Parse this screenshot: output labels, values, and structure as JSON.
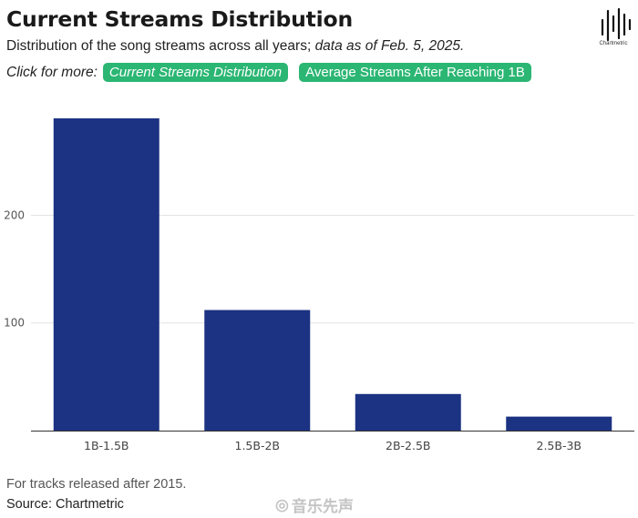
{
  "header": {
    "title": "Current Streams Distribution",
    "subtitle_plain": "Distribution of the song streams across all years; ",
    "subtitle_italic": "data as of Feb. 5, 2025.",
    "click_label": "Click for more:",
    "links": [
      {
        "label": "Current Streams Distribution"
      },
      {
        "label": "Average Streams After Reaching 1B"
      }
    ]
  },
  "logo": {
    "text": "Chartmetric",
    "icon": "chartmetric-waveform-logo"
  },
  "chart_data": {
    "type": "bar",
    "title": "Current Streams Distribution",
    "categories": [
      "1B-1.5B",
      "1.5B-2B",
      "2B-2.5B",
      "2.5B-3B"
    ],
    "values": [
      290,
      112,
      34,
      13
    ],
    "ylim": [
      0,
      290
    ],
    "yticks": [
      100,
      200
    ],
    "xlabel": "",
    "ylabel": "",
    "grid": true,
    "bar_color": "#1c3282"
  },
  "footer": {
    "note": "For tracks released after 2015.",
    "source_label": "Source:",
    "source_value": "Chartmetric"
  },
  "watermark": {
    "text": "音乐先声",
    "icon": "weibo-icon"
  },
  "colors": {
    "accent": "#2bb673",
    "bar": "#1c3282",
    "grid": "#e3e3e3"
  }
}
